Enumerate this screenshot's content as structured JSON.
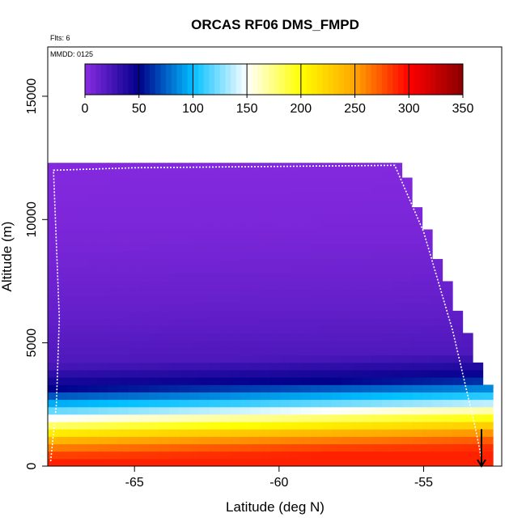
{
  "chart_data": {
    "type": "heatmap",
    "title": "ORCAS RF06 DMS_FMPD",
    "xlabel": "Latitude (deg N)",
    "ylabel": "Altitude (m)",
    "xlim": [
      -68,
      -52.3
    ],
    "ylim": [
      0,
      17000
    ],
    "x_ticks": [
      -65,
      -60,
      -55
    ],
    "x_tick_labels": [
      "-65",
      "-60",
      "-55"
    ],
    "y_ticks": [
      0,
      5000,
      10000,
      15000
    ],
    "y_tick_labels": [
      "0",
      "5000",
      "10000",
      "15000"
    ],
    "annotations": {
      "flights": "Flts: 6",
      "date": "MMDD: 0125"
    },
    "colorbar": {
      "min": 0,
      "max": 350,
      "ticks": [
        0,
        50,
        100,
        150,
        200,
        250,
        300,
        350
      ],
      "tick_labels": [
        "0",
        "50",
        "100",
        "150",
        "200",
        "250",
        "300",
        "350"
      ],
      "colors": [
        "#8a2be2",
        "#00008b",
        "#00bfff",
        "#ffffff",
        "#ffff00",
        "#ffa500",
        "#ff0000",
        "#8b0000"
      ]
    },
    "field_description_levels": [
      {
        "alt": 0,
        "value": 290
      },
      {
        "alt": 300,
        "value": 280
      },
      {
        "alt": 800,
        "value": 250
      },
      {
        "alt": 1500,
        "value": 180
      },
      {
        "alt": 2200,
        "value": 110
      },
      {
        "alt": 3000,
        "value": 50
      },
      {
        "alt": 4000,
        "value": 22
      },
      {
        "alt": 6000,
        "value": 14
      },
      {
        "alt": 9000,
        "value": 6
      },
      {
        "alt": 12200,
        "value": 2
      }
    ],
    "flight_track": [
      {
        "lat": -67.9,
        "alt": 200
      },
      {
        "lat": -67.7,
        "alt": 2500
      },
      {
        "lat": -67.6,
        "alt": 6000
      },
      {
        "lat": -67.7,
        "alt": 9000
      },
      {
        "lat": -67.8,
        "alt": 12000
      },
      {
        "lat": -65.0,
        "alt": 12100
      },
      {
        "lat": -56.0,
        "alt": 12200
      },
      {
        "lat": -55.0,
        "alt": 9500
      },
      {
        "lat": -54.0,
        "alt": 5500
      },
      {
        "lat": -53.2,
        "alt": 1500
      },
      {
        "lat": -53.0,
        "alt": 300
      }
    ]
  }
}
